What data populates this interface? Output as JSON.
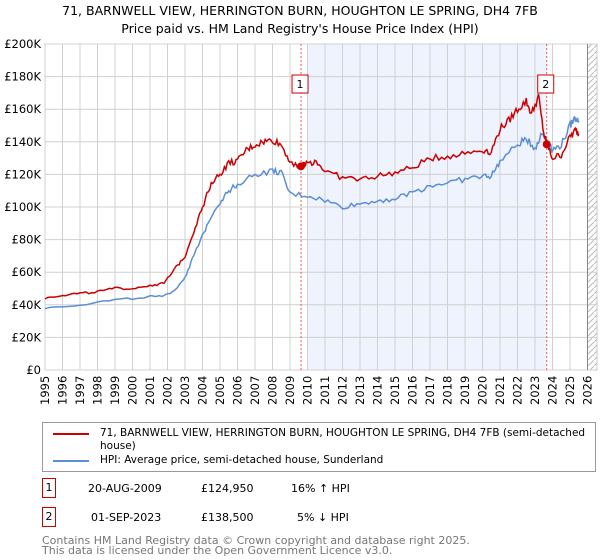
{
  "chart_data": {
    "type": "line",
    "title": "71, BARNWELL VIEW, HERRINGTON BURN, HOUGHTON LE SPRING, DH4 7FB",
    "subtitle": "Price paid vs. HM Land Registry's House Price Index (HPI)",
    "ylim": [
      0,
      200000
    ],
    "xlim": [
      1995,
      2026
    ],
    "yticks": [
      "£0",
      "£20K",
      "£40K",
      "£60K",
      "£80K",
      "£100K",
      "£120K",
      "£140K",
      "£160K",
      "£180K",
      "£200K"
    ],
    "xticks": [
      "1995",
      "1996",
      "1997",
      "1998",
      "1999",
      "2000",
      "2001",
      "2002",
      "2003",
      "2004",
      "2005",
      "2006",
      "2007",
      "2008",
      "2009",
      "2010",
      "2011",
      "2012",
      "2013",
      "2014",
      "2015",
      "2016",
      "2017",
      "2018",
      "2019",
      "2020",
      "2021",
      "2022",
      "2023",
      "2024",
      "2025",
      "2026"
    ],
    "grid": true,
    "series": [
      {
        "name": "71, BARNWELL VIEW, HERRINGTON BURN, HOUGHTON LE SPRING, DH4 7FB (semi-detached house)",
        "color": "#cc0000",
        "x": [
          1995,
          1996,
          1997,
          1998,
          1999,
          2000,
          2001,
          2001.8,
          2002.5,
          2003,
          2003.5,
          2004,
          2004.5,
          2005,
          2005.5,
          2006,
          2006.5,
          2007,
          2007.5,
          2008,
          2008.5,
          2009,
          2009.63,
          2010,
          2010.5,
          2011,
          2012,
          2013,
          2014,
          2015,
          2016,
          2017,
          2018,
          2019,
          2020,
          2020.5,
          2021,
          2021.5,
          2022,
          2022.5,
          2022.8,
          2023.2,
          2023.5,
          2023.67,
          2024,
          2024.5,
          2025,
          2025.3,
          2025.5
        ],
        "y": [
          44000,
          46000,
          47000,
          48000,
          50000,
          50000,
          52000,
          53000,
          63000,
          70000,
          85000,
          100000,
          115000,
          120000,
          127000,
          128000,
          135000,
          138000,
          140000,
          141000,
          138000,
          128000,
          124950,
          127000,
          128000,
          122000,
          118000,
          117000,
          119000,
          121000,
          124000,
          130000,
          131000,
          133000,
          135000,
          134000,
          148000,
          153000,
          160000,
          165000,
          157000,
          168000,
          145000,
          138500,
          130000,
          132000,
          143000,
          147000,
          145000
        ]
      },
      {
        "name": "HPI: Average price, semi-detached house, Sunderland",
        "color": "#5b8fd6",
        "x": [
          1995,
          1997,
          1999,
          2001,
          2001.8,
          2002.5,
          2003,
          2003.5,
          2004,
          2004.5,
          2005,
          2005.5,
          2006,
          2007,
          2008,
          2008.5,
          2009,
          2010,
          2011,
          2012,
          2013,
          2014,
          2015,
          2016,
          2017,
          2018,
          2019,
          2020,
          2020.5,
          2021,
          2022,
          2022.5,
          2023,
          2023.4,
          2023.8,
          2024,
          2024.5,
          2025,
          2025.3,
          2025.5
        ],
        "y": [
          38000,
          40000,
          43000,
          45000,
          45000,
          50000,
          57000,
          70000,
          82000,
          95000,
          103000,
          110000,
          114000,
          120000,
          122000,
          121000,
          108000,
          107000,
          104000,
          100000,
          102000,
          104000,
          105000,
          109000,
          113000,
          115000,
          117000,
          119000,
          119000,
          128000,
          138000,
          142000,
          136000,
          145000,
          140000,
          135000,
          138000,
          150000,
          155000,
          153000
        ]
      }
    ],
    "sales": [
      {
        "label": "1",
        "x": 2009.63,
        "date": "20-AUG-2009",
        "price": "£124,950",
        "value": 124950,
        "hpi": "16% ↑ HPI"
      },
      {
        "label": "2",
        "x": 2023.67,
        "date": "01-SEP-2023",
        "price": "£138,500",
        "value": 138500,
        "hpi": "5% ↓ HPI"
      }
    ],
    "legend": [
      "71, BARNWELL VIEW, HERRINGTON BURN, HOUGHTON LE SPRING, DH4 7FB (semi-detached house)",
      "HPI: Average price, semi-detached house, Sunderland"
    ],
    "legend_position": "bottom"
  },
  "footer": [
    "Contains HM Land Registry data © Crown copyright and database right 2025.",
    "This data is licensed under the Open Government Licence v3.0."
  ]
}
